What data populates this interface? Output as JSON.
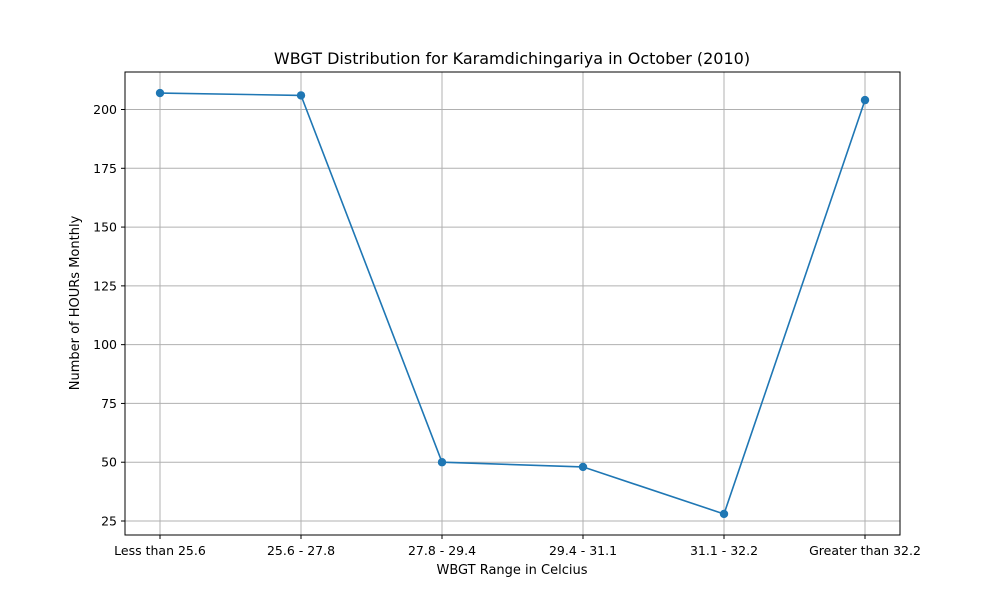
{
  "chart_data": {
    "type": "line",
    "title": "WBGT Distribution for Karamdichingariya in October (2010)",
    "xlabel": "WBGT Range in Celcius",
    "ylabel": "Number of HOURs Monthly",
    "categories": [
      "Less than 25.6",
      "25.6 - 27.8",
      "27.8 - 29.4",
      "29.4 - 31.1",
      "31.1 - 32.2",
      "Greater than 32.2"
    ],
    "values": [
      207,
      206,
      50,
      48,
      28,
      204
    ],
    "ylim": [
      19.05,
      215.95
    ],
    "yticks": [
      25,
      50,
      75,
      100,
      125,
      150,
      175,
      200
    ],
    "grid": true,
    "marker": "circle",
    "color": "#1f77b4"
  }
}
